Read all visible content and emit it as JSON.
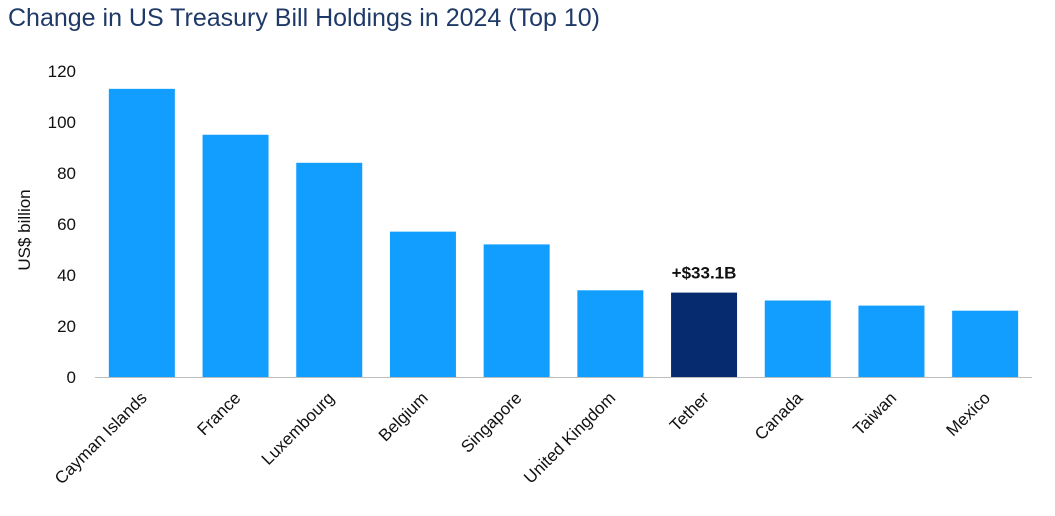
{
  "chart_data": {
    "type": "bar",
    "title": "Change in US Treasury Bill Holdings in 2024 (Top 10)",
    "ylabel": "US$ billion",
    "xlabel": "",
    "ylim": [
      0,
      120
    ],
    "yticks": [
      0,
      20,
      40,
      60,
      80,
      100,
      120
    ],
    "grid": false,
    "categories": [
      "Cayman Islands",
      "France",
      "Luxembourg",
      "Belgium",
      "Singapore",
      "United Kingdom",
      "Tether",
      "Canada",
      "Taiwan",
      "Mexico"
    ],
    "values": [
      113,
      95,
      84,
      57,
      52,
      34,
      33.1,
      30,
      28,
      26
    ],
    "highlight_index": 6,
    "annotation": "+$33.1B",
    "colors": {
      "bar": "#129EFF",
      "highlight": "#062B6E",
      "title": "#1F3A68"
    }
  }
}
